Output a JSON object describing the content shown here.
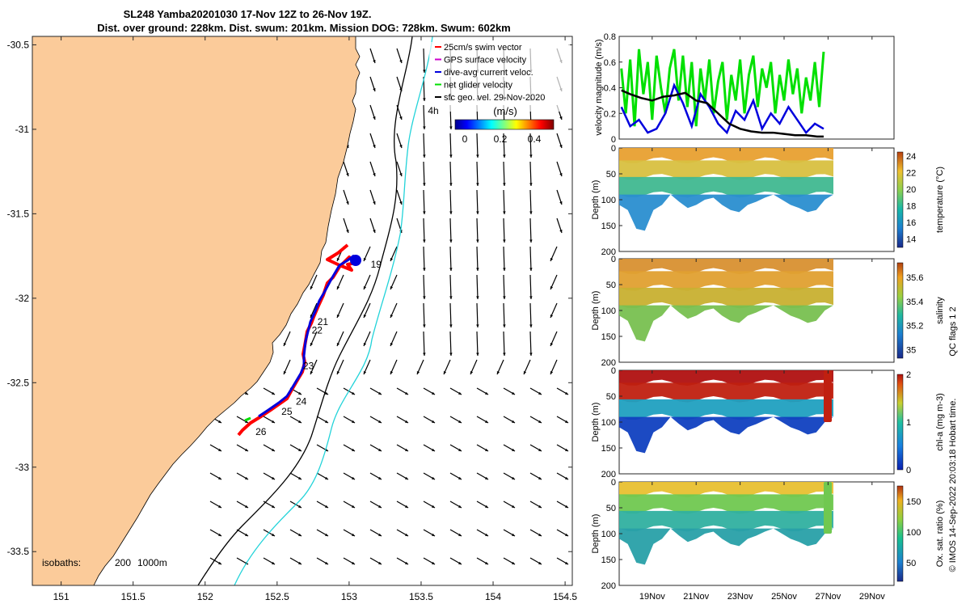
{
  "title": {
    "line1": "SL248 Yamba20201030 17-Nov 12Z to 26-Nov 19Z.",
    "line2": "Dist. over ground: 228km. Dist. swum: 201km. Mission DOG: 728km. Swum: 602km"
  },
  "colors": {
    "land": "#fbcb9a",
    "isobath_200": "#22d3d9",
    "isobath_1000": "#000000",
    "track_gps": "#ff0000",
    "track_dive": "#0000dd",
    "net_velocity": "#00e000"
  },
  "map": {
    "x_ticks": [
      "151",
      "151.5",
      "152",
      "152.5",
      "153",
      "153.5",
      "154",
      "154.5"
    ],
    "y_ticks": [
      "-30.5",
      "-31",
      "-31.5",
      "-32",
      "-32.5",
      "-33",
      "-33.5"
    ],
    "xlim": [
      150.8,
      154.55
    ],
    "ylim": [
      -33.7,
      -30.45
    ],
    "legend": [
      {
        "label": "25cm/s swim vector",
        "color": "#ff0000"
      },
      {
        "label": "GPS surface velocity",
        "color": "#cc00cc"
      },
      {
        "label": "dive-avg current veloc.",
        "color": "#0000dd"
      },
      {
        "label": "net glider velocity",
        "color": "#00e000"
      },
      {
        "label": "sfc geo. vel. 29-Nov-2020",
        "color": "#000000"
      }
    ],
    "colorbar": {
      "unit": "(m/s)",
      "ticks": [
        "0",
        "0.2",
        "0.4"
      ],
      "range": [
        0,
        0.5
      ]
    },
    "label_4h": "4h",
    "isobath_label": "isobaths:",
    "isobath_values": [
      "200",
      "1000m"
    ],
    "day_labels": [
      {
        "text": "19",
        "lon": 153.15,
        "lat": -31.8
      },
      {
        "text": "21",
        "lon": 152.78,
        "lat": -32.14
      },
      {
        "text": "22",
        "lon": 152.74,
        "lat": -32.19
      },
      {
        "text": "23",
        "lon": 152.68,
        "lat": -32.4
      },
      {
        "text": "24",
        "lon": 152.63,
        "lat": -32.61
      },
      {
        "text": "25",
        "lon": 152.53,
        "lat": -32.67
      },
      {
        "text": "26",
        "lon": 152.35,
        "lat": -32.79
      }
    ]
  },
  "chart_data": [
    {
      "type": "line",
      "ylabel": "velocity magnitude (m/s)",
      "ylim": [
        0,
        0.8
      ],
      "yticks": [
        "0",
        "0.2",
        "0.4",
        "0.6",
        "0.8"
      ],
      "xlim": [
        17.5,
        30
      ],
      "series": [
        {
          "color": "#00e000",
          "x": [
            17.6,
            17.8,
            18.0,
            18.2,
            18.4,
            18.6,
            18.8,
            19.0,
            19.2,
            19.4,
            19.6,
            19.8,
            20.0,
            20.2,
            20.4,
            20.6,
            20.8,
            21.0,
            21.2,
            21.4,
            21.6,
            21.8,
            22.0,
            22.2,
            22.4,
            22.6,
            22.8,
            23.0,
            23.2,
            23.4,
            23.6,
            23.8,
            24.0,
            24.2,
            24.4,
            24.6,
            24.8,
            25.0,
            25.2,
            25.4,
            25.6,
            25.8,
            26.0,
            26.2,
            26.4,
            26.6,
            26.8
          ],
          "values": [
            0.55,
            0.2,
            0.62,
            0.1,
            0.7,
            0.35,
            0.6,
            0.15,
            0.65,
            0.4,
            0.2,
            0.55,
            0.7,
            0.3,
            0.65,
            0.25,
            0.6,
            0.1,
            0.55,
            0.3,
            0.62,
            0.2,
            0.45,
            0.6,
            0.15,
            0.5,
            0.3,
            0.62,
            0.2,
            0.5,
            0.65,
            0.25,
            0.55,
            0.4,
            0.6,
            0.2,
            0.5,
            0.3,
            0.62,
            0.35,
            0.55,
            0.2,
            0.48,
            0.3,
            0.6,
            0.25,
            0.68
          ]
        },
        {
          "color": "#0000dd",
          "x": [
            17.6,
            18.0,
            18.4,
            18.8,
            19.2,
            19.6,
            20.0,
            20.4,
            20.8,
            21.2,
            21.6,
            22.0,
            22.4,
            22.8,
            23.2,
            23.6,
            24.0,
            24.4,
            24.8,
            25.2,
            25.6,
            26.0,
            26.4,
            26.8
          ],
          "values": [
            0.25,
            0.1,
            0.15,
            0.05,
            0.08,
            0.2,
            0.42,
            0.28,
            0.1,
            0.35,
            0.25,
            0.12,
            0.05,
            0.22,
            0.15,
            0.3,
            0.08,
            0.2,
            0.12,
            0.25,
            0.15,
            0.05,
            0.12,
            0.08
          ]
        },
        {
          "color": "#000000",
          "x": [
            17.6,
            18.0,
            18.5,
            19.0,
            19.5,
            20.0,
            20.5,
            21.0,
            21.5,
            22.0,
            22.5,
            23.0,
            23.5,
            24.0,
            24.5,
            25.0,
            25.5,
            26.0,
            26.5,
            26.8
          ],
          "values": [
            0.38,
            0.35,
            0.32,
            0.3,
            0.33,
            0.34,
            0.36,
            0.3,
            0.28,
            0.2,
            0.12,
            0.08,
            0.06,
            0.05,
            0.05,
            0.04,
            0.03,
            0.03,
            0.02,
            0.02
          ]
        }
      ]
    },
    {
      "type": "heatmap",
      "ylabel": "Depth (m)",
      "clabel": "temperature (°C)",
      "ylim": [
        0,
        200
      ],
      "yticks": [
        "0",
        "50",
        "100",
        "150",
        "200"
      ],
      "cticks": [
        "14",
        "16",
        "18",
        "20",
        "22",
        "24"
      ],
      "crange": [
        13,
        24.5
      ]
    },
    {
      "type": "heatmap",
      "ylabel": "Depth (m)",
      "clabel": "salinity",
      "ylim": [
        0,
        200
      ],
      "yticks": [
        "0",
        "50",
        "100",
        "150",
        "200"
      ],
      "cticks": [
        "35",
        "35.2",
        "35.4",
        "35.6"
      ],
      "crange": [
        34.93,
        35.72
      ]
    },
    {
      "type": "heatmap",
      "ylabel": "Depth (m)",
      "clabel": "chl-a (mg m-3)",
      "ylim": [
        0,
        200
      ],
      "yticks": [
        "0",
        "50",
        "100",
        "150",
        "200"
      ],
      "cticks": [
        "0",
        "1",
        "2"
      ],
      "crange": [
        0,
        2
      ]
    },
    {
      "type": "heatmap",
      "ylabel": "Depth (m)",
      "clabel": "Ox. sat. ratio (%)",
      "ylim": [
        0,
        200
      ],
      "yticks": [
        "0",
        "50",
        "100",
        "150",
        "200"
      ],
      "cticks": [
        "50",
        "100",
        "150"
      ],
      "crange": [
        20,
        175
      ]
    }
  ],
  "time_ticks": [
    "19Nov",
    "21Nov",
    "23Nov",
    "25Nov",
    "27Nov",
    "29Nov"
  ],
  "qc_label": "QC flags 1  2",
  "footer": "© IMOS 14-Sep-2022 20:03:18 Hobart time."
}
